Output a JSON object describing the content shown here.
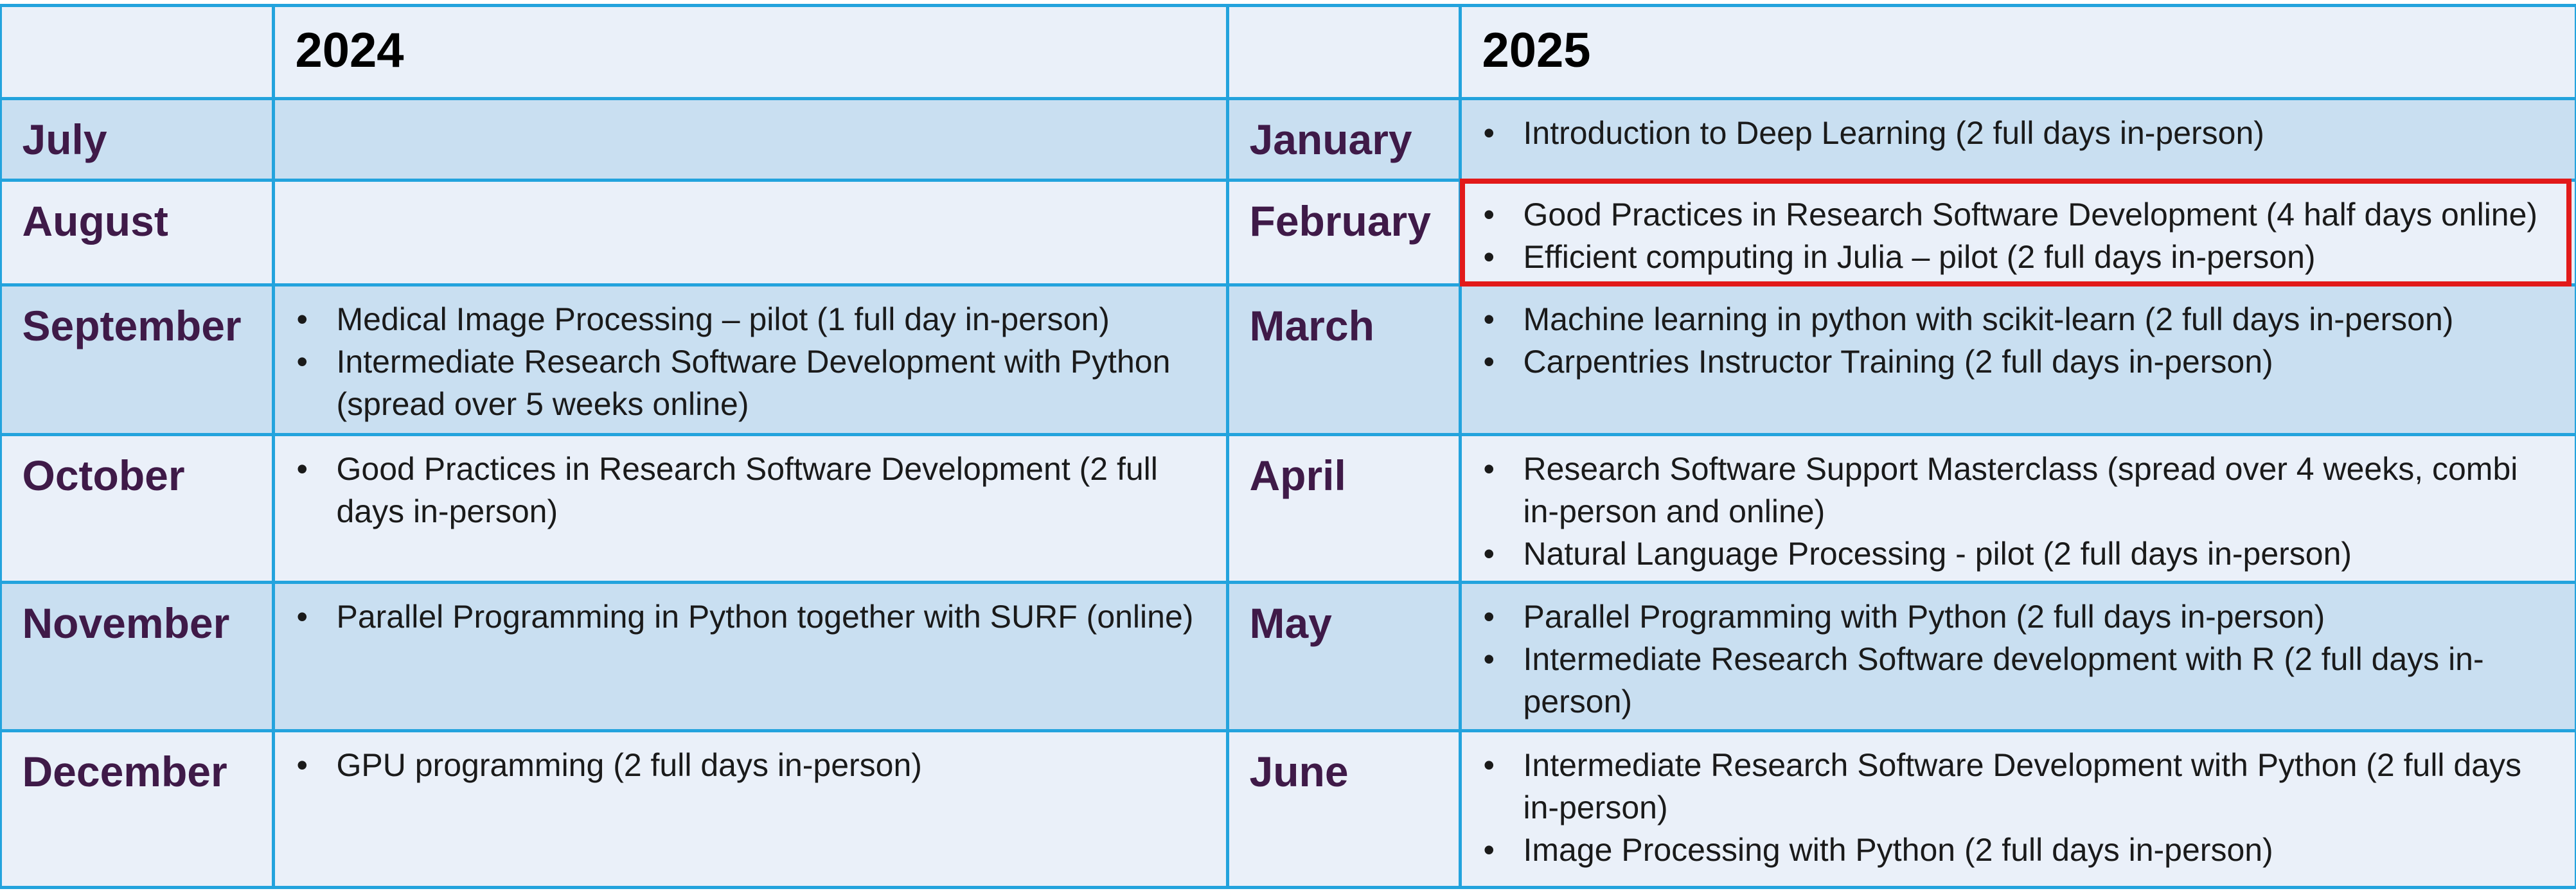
{
  "years": {
    "left": "2024",
    "right": "2025"
  },
  "rows": [
    {
      "month_left": "July",
      "items_left": [],
      "month_right": "January",
      "items_right": [
        "Introduction to Deep Learning (2 full days in-person)"
      ]
    },
    {
      "month_left": "August",
      "items_left": [],
      "month_right": "February",
      "items_right": [
        "Good Practices in Research Software Development (4 half days online)",
        "Efficient computing in Julia – pilot (2 full days in-person)"
      ]
    },
    {
      "month_left": "September",
      "items_left": [
        "Medical Image Processing – pilot (1 full day in-person)",
        "Intermediate Research Software Development with Python (spread over 5 weeks online)"
      ],
      "month_right": "March",
      "items_right": [
        "Machine learning in python with scikit-learn (2 full days in-person)",
        "Carpentries Instructor Training (2 full days in-person)"
      ]
    },
    {
      "month_left": "October",
      "items_left": [
        "Good Practices in Research Software Development (2 full days in-person)"
      ],
      "month_right": "April",
      "items_right": [
        "Research Software Support Masterclass (spread over 4 weeks, combi in-person and online)",
        "Natural Language Processing - pilot (2 full days in-person)"
      ]
    },
    {
      "month_left": "November",
      "items_left": [
        "Parallel Programming in Python together with SURF (online)"
      ],
      "month_right": "May",
      "items_right": [
        "Parallel Programming with Python (2 full days in-person)",
        "Intermediate Research Software development with R (2 full days in-person)"
      ]
    },
    {
      "month_left": "December",
      "items_left": [
        "GPU programming (2 full days in-person)"
      ],
      "month_right": "June",
      "items_right": [
        "Intermediate Research Software Development with Python (2 full days in-person)",
        "Image Processing with Python (2 full days in-person)"
      ]
    }
  ],
  "colors": {
    "border": "#23a3dd",
    "row_light": "#eaf0f9",
    "row_dark": "#c9dff1",
    "month_text": "#3f1a48",
    "highlight": "#e21a1a"
  },
  "highlight": {
    "row": 1,
    "side": "right"
  }
}
